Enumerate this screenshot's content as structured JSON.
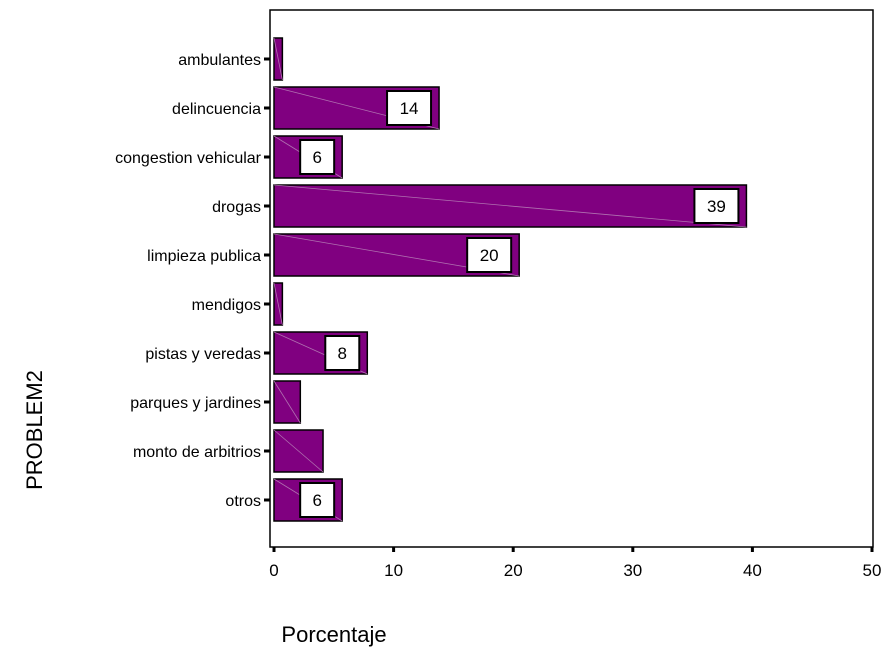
{
  "chart_data": {
    "type": "bar",
    "orientation": "horizontal",
    "categories": [
      "ambulantes",
      "delincuencia",
      "congestion vehicular",
      "drogas",
      "limpieza publica",
      "mendigos",
      "pistas y veredas",
      "parques y jardines",
      "monto de arbitrios",
      "otros"
    ],
    "values": [
      0.7,
      13.8,
      5.7,
      39.5,
      20.5,
      0.7,
      7.8,
      2.2,
      4.1,
      5.7
    ],
    "data_labels": [
      "",
      "14",
      "6",
      "39",
      "20",
      "",
      "8",
      "",
      "",
      "6"
    ],
    "xlabel": "Porcentaje",
    "ylabel": "PROBLEM2",
    "xlim": [
      0,
      50
    ],
    "xticks": [
      0,
      10,
      20,
      30,
      40,
      50
    ],
    "grid": false,
    "legend": "none",
    "colors": {
      "bar_fill": "#800080",
      "bar_stroke": "#000000",
      "label_box": "#ffffff"
    }
  }
}
